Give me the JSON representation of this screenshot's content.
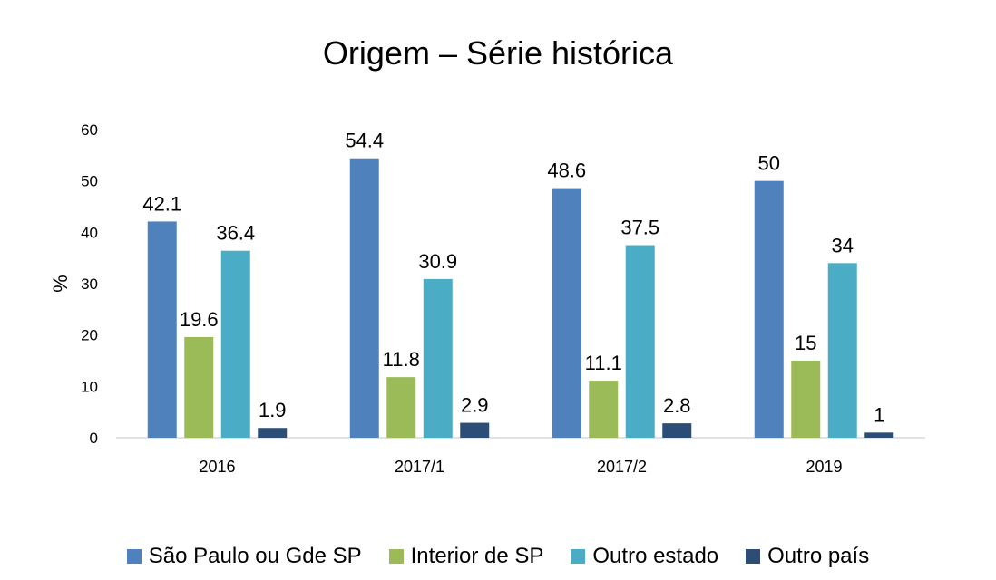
{
  "chart_data": {
    "type": "bar",
    "title": "Origem – Série histórica",
    "xlabel": "",
    "ylabel": "%",
    "ylim": [
      0,
      60
    ],
    "yticks": [
      0,
      10,
      20,
      30,
      40,
      50,
      60
    ],
    "grid": false,
    "legend_position": "bottom",
    "categories": [
      "2016",
      "2017/1",
      "2017/2",
      "2019"
    ],
    "series": [
      {
        "name": "São Paulo ou Gde SP",
        "color": "#4f81bd",
        "values": [
          42.1,
          54.4,
          48.6,
          50
        ],
        "labels": [
          "42.1",
          "54.4",
          "48.6",
          "50"
        ]
      },
      {
        "name": "Interior de SP",
        "color": "#9bbb59",
        "values": [
          19.6,
          11.8,
          11.1,
          15
        ],
        "labels": [
          "19.6",
          "11.8",
          "11.1",
          "15"
        ]
      },
      {
        "name": "Outro estado",
        "color": "#4bacc6",
        "values": [
          36.4,
          30.9,
          37.5,
          34
        ],
        "labels": [
          "36.4",
          "30.9",
          "37.5",
          "34"
        ]
      },
      {
        "name": "Outro país",
        "color": "#2c4d75",
        "values": [
          1.9,
          2.9,
          2.8,
          1
        ],
        "labels": [
          "1.9",
          "2.9",
          "2.8",
          "1"
        ]
      }
    ]
  }
}
